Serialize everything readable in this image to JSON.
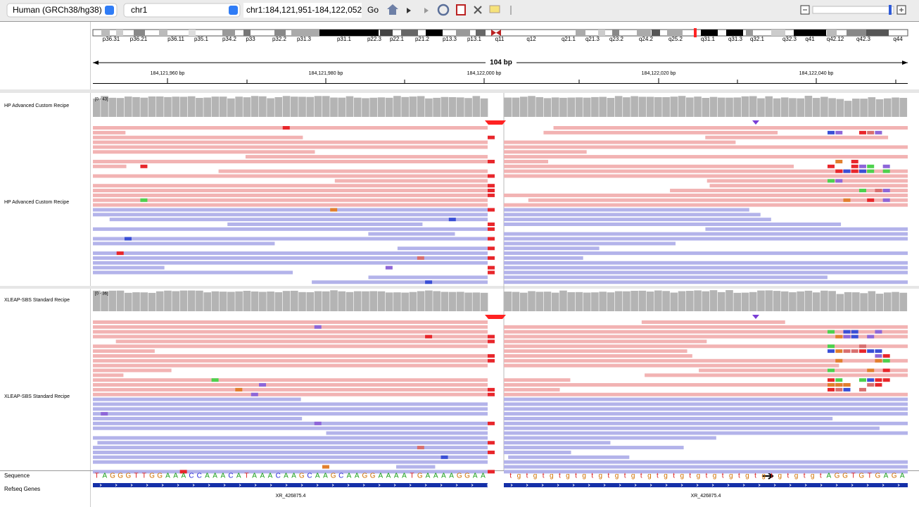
{
  "toolbar": {
    "genome": "Human (GRCh38/hg38)",
    "chromosome": "chr1",
    "locus": "chr1:184,121,951-184,122,052",
    "go": "Go"
  },
  "ideogram": {
    "bands": [
      "p36.31",
      "p36.21",
      "p36.11",
      "p35.1",
      "p34.2",
      "p33",
      "p32.2",
      "p31.3",
      "p31.1",
      "p22.3",
      "p22.1",
      "p21.2",
      "p13.3",
      "p13.1",
      "q11",
      "q12",
      "q21.1",
      "q21.3",
      "q23.2",
      "q24.2",
      "q25.2",
      "q31.1",
      "q31.3",
      "q32.1",
      "q32.3",
      "q41",
      "q42.12",
      "q42.3",
      "q44"
    ]
  },
  "ruler": {
    "span": "104 bp",
    "positions": [
      "184,121,960 bp",
      "184,121,980 bp",
      "184,122,000 bp",
      "184,122,020 bp",
      "184,122,040 bp"
    ]
  },
  "tracks": [
    {
      "coverage_name": "HP Advanced Custom Recipe",
      "range": "[0 - 43]",
      "alignment_name": "HP Advanced Custom Recipe"
    },
    {
      "coverage_name": "XLEAP-SBS Standard Recipe",
      "range": "[0 - 36]",
      "alignment_name": "XLEAP-SBS Standard Recipe"
    }
  ],
  "sequence": {
    "label": "Sequence",
    "left": [
      "T",
      "A",
      "G",
      "G",
      "G",
      "T",
      "T",
      "G",
      "G",
      "A",
      "A",
      "A",
      "C",
      "C",
      "A",
      "A",
      "A",
      "C",
      "A",
      "T",
      "A",
      "A",
      "A",
      "C",
      "A",
      "A",
      "G",
      "C",
      "A",
      "A",
      "G",
      "C",
      "A",
      "A",
      "G",
      "G",
      "A",
      "A",
      "A",
      "A",
      "T",
      "G",
      "A",
      "A",
      "A",
      "A",
      "G",
      "G",
      "A",
      "A"
    ],
    "right": [
      "t",
      "g",
      "t",
      "g",
      "t",
      "g",
      "t",
      "g",
      "t",
      "g",
      "t",
      "g",
      "t",
      "g",
      "t",
      "g",
      "t",
      "g",
      "t",
      "g",
      "t",
      "g",
      "t",
      "g",
      "t",
      "g",
      "t",
      "g",
      "t",
      "g",
      "t",
      "g",
      "t",
      "g",
      "t",
      "g",
      "t",
      "g",
      "t",
      "A",
      "G",
      "G",
      "T",
      "G",
      "T",
      "G",
      "A",
      "G",
      "A"
    ]
  },
  "genes": {
    "label": "Refseq Genes",
    "names": [
      "XR_426875.4",
      "XR_426875.4"
    ]
  }
}
